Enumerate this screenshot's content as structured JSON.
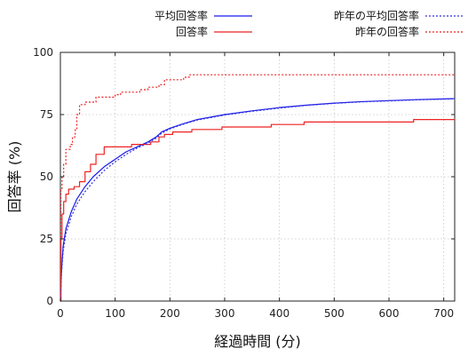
{
  "chart_data": {
    "type": "line",
    "xlabel": "経過時間 (分)",
    "ylabel": "回答率 (%)",
    "xlim": [
      0,
      720
    ],
    "ylim": [
      0,
      100
    ],
    "x_ticks": [
      0,
      100,
      200,
      300,
      400,
      500,
      600,
      700
    ],
    "y_ticks": [
      0,
      25,
      50,
      75,
      100
    ],
    "grid": true,
    "legend": "top",
    "series": [
      {
        "name": "平均回答率",
        "color": "#1a1aee",
        "style": "solid",
        "step": false,
        "points": [
          [
            0,
            0
          ],
          [
            2,
            12
          ],
          [
            5,
            22
          ],
          [
            10,
            29
          ],
          [
            20,
            36
          ],
          [
            30,
            41
          ],
          [
            45,
            46
          ],
          [
            60,
            50
          ],
          [
            80,
            54
          ],
          [
            100,
            57
          ],
          [
            120,
            60
          ],
          [
            140,
            62
          ],
          [
            160,
            64
          ],
          [
            175,
            66
          ],
          [
            185,
            68
          ],
          [
            200,
            69.5
          ],
          [
            220,
            71
          ],
          [
            250,
            73
          ],
          [
            300,
            75
          ],
          [
            350,
            76.5
          ],
          [
            400,
            77.8
          ],
          [
            450,
            78.8
          ],
          [
            500,
            79.6
          ],
          [
            550,
            80.2
          ],
          [
            600,
            80.6
          ],
          [
            650,
            81
          ],
          [
            700,
            81.3
          ],
          [
            720,
            81.4
          ]
        ]
      },
      {
        "name": "回答率",
        "color": "#ee2222",
        "style": "solid",
        "step": true,
        "points": [
          [
            0,
            0
          ],
          [
            1,
            25
          ],
          [
            3,
            35
          ],
          [
            6,
            40
          ],
          [
            10,
            43
          ],
          [
            15,
            45
          ],
          [
            25,
            46
          ],
          [
            35,
            48
          ],
          [
            45,
            52
          ],
          [
            55,
            55
          ],
          [
            65,
            59
          ],
          [
            80,
            62
          ],
          [
            120,
            62
          ],
          [
            130,
            63
          ],
          [
            155,
            63
          ],
          [
            165,
            64
          ],
          [
            175,
            64
          ],
          [
            180,
            66
          ],
          [
            190,
            67
          ],
          [
            205,
            68
          ],
          [
            240,
            69
          ],
          [
            295,
            70
          ],
          [
            375,
            70
          ],
          [
            385,
            71
          ],
          [
            445,
            72
          ],
          [
            645,
            73
          ],
          [
            720,
            73
          ]
        ]
      },
      {
        "name": "昨年の平均回答率",
        "color": "#3333dd",
        "style": "dotted",
        "step": false,
        "points": [
          [
            0,
            0
          ],
          [
            2,
            11
          ],
          [
            5,
            20
          ],
          [
            10,
            27
          ],
          [
            20,
            34
          ],
          [
            30,
            39
          ],
          [
            45,
            44
          ],
          [
            60,
            48
          ],
          [
            80,
            52.5
          ],
          [
            100,
            56
          ],
          [
            120,
            59
          ],
          [
            140,
            61.5
          ],
          [
            160,
            63.5
          ],
          [
            175,
            65.5
          ],
          [
            185,
            67.5
          ],
          [
            200,
            69.2
          ],
          [
            220,
            70.8
          ],
          [
            250,
            72.8
          ],
          [
            300,
            74.8
          ],
          [
            350,
            76.3
          ],
          [
            400,
            77.6
          ],
          [
            450,
            78.7
          ],
          [
            500,
            79.5
          ],
          [
            550,
            80.1
          ],
          [
            600,
            80.5
          ],
          [
            650,
            80.9
          ],
          [
            700,
            81.2
          ],
          [
            720,
            81.3
          ]
        ]
      },
      {
        "name": "昨年の回答率",
        "color": "#ee2222",
        "style": "dotted",
        "step": true,
        "points": [
          [
            0,
            0
          ],
          [
            1,
            45
          ],
          [
            3,
            50
          ],
          [
            6,
            55
          ],
          [
            10,
            61
          ],
          [
            18,
            63
          ],
          [
            22,
            66
          ],
          [
            27,
            69
          ],
          [
            30,
            75
          ],
          [
            35,
            79
          ],
          [
            45,
            80
          ],
          [
            65,
            82
          ],
          [
            100,
            83
          ],
          [
            110,
            84
          ],
          [
            145,
            85
          ],
          [
            160,
            86
          ],
          [
            180,
            87
          ],
          [
            190,
            89
          ],
          [
            225,
            90
          ],
          [
            235,
            91
          ],
          [
            720,
            91
          ]
        ]
      }
    ]
  }
}
